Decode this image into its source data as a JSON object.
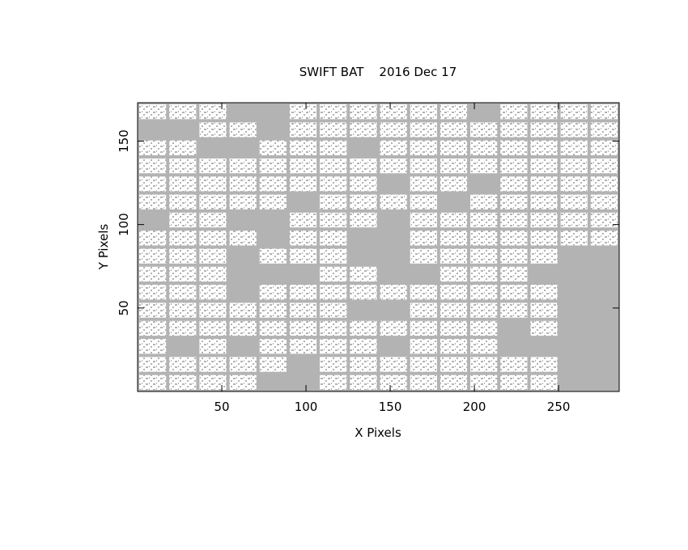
{
  "chart_data": {
    "type": "image",
    "title": "SWIFT BAT    2016 Dec 17",
    "x_label": "X Pixels",
    "y_label": "Y Pixels",
    "xlim": [
      0,
      286
    ],
    "ylim": [
      0,
      173
    ],
    "xticks": [
      50,
      100,
      150,
      200,
      250
    ],
    "yticks": [
      50,
      100,
      150
    ],
    "color": "#b3b3b3"
  }
}
